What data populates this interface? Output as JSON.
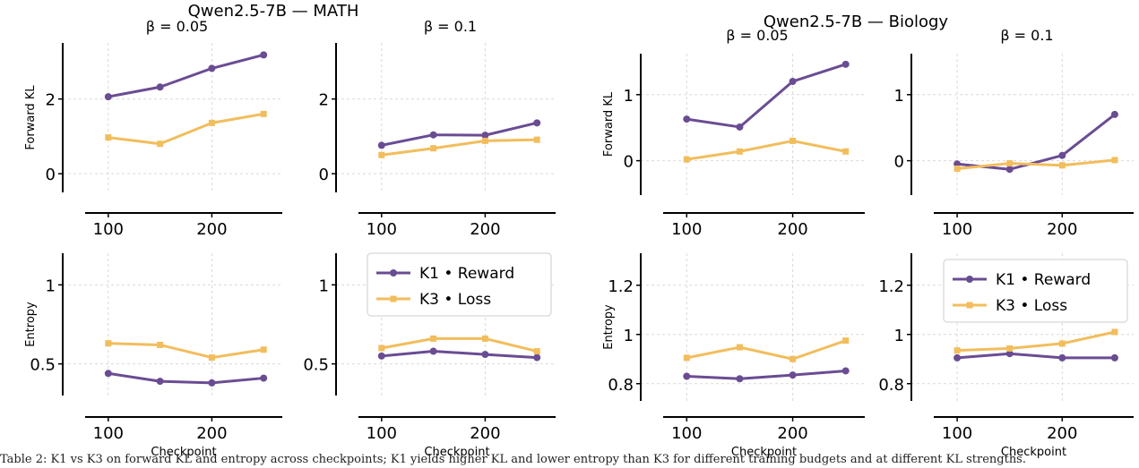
{
  "colors": {
    "k1": "#6a4c93",
    "k3": "#f2bd5c",
    "grid": "#d9d9d9",
    "axis": "#000000"
  },
  "figure": {
    "caption_fragment": "Table 2: K1 vs K3 on forward KL and entropy across checkpoints; K1 yields higher KL and lower entropy than K3 for different training budgets and at different KL strengths."
  },
  "chart_data": [
    {
      "type": "line",
      "group": "Qwen2.5-7B — MATH",
      "title": "β = 0.05",
      "ylabel": "Forward KL",
      "xlabel": "",
      "x": [
        100,
        150,
        200,
        250
      ],
      "xticks": [
        100,
        200
      ],
      "yticks": [
        0,
        2
      ],
      "ylim": [
        -0.5,
        3.5
      ],
      "series": [
        {
          "name": "K1 • Reward",
          "marker": "circle",
          "values": [
            2.06,
            2.32,
            2.82,
            3.18
          ]
        },
        {
          "name": "K3 • Loss",
          "marker": "square",
          "values": [
            0.97,
            0.8,
            1.36,
            1.6
          ]
        }
      ]
    },
    {
      "type": "line",
      "group": "Qwen2.5-7B — MATH",
      "title": "β = 0.1",
      "ylabel": "",
      "xlabel": "",
      "x": [
        100,
        150,
        200,
        250
      ],
      "xticks": [
        100,
        200
      ],
      "yticks": [
        0,
        2
      ],
      "ylim": [
        -0.5,
        3.5
      ],
      "series": [
        {
          "name": "K1 • Reward",
          "marker": "circle",
          "values": [
            0.76,
            1.04,
            1.03,
            1.36
          ]
        },
        {
          "name": "K3 • Loss",
          "marker": "square",
          "values": [
            0.5,
            0.68,
            0.88,
            0.91
          ]
        }
      ]
    },
    {
      "type": "line",
      "group": "Qwen2.5-7B — Biology",
      "title": "β = 0.05",
      "ylabel": "Forward KL",
      "xlabel": "",
      "x": [
        100,
        150,
        200,
        250
      ],
      "xticks": [
        100,
        200
      ],
      "yticks": [
        0,
        1
      ],
      "ylim": [
        -0.52,
        1.62
      ],
      "series": [
        {
          "name": "K1 • Reward",
          "marker": "circle",
          "values": [
            0.63,
            0.51,
            1.2,
            1.46
          ]
        },
        {
          "name": "K3 • Loss",
          "marker": "square",
          "values": [
            0.02,
            0.14,
            0.3,
            0.14
          ]
        }
      ]
    },
    {
      "type": "line",
      "group": "Qwen2.5-7B — Biology",
      "title": "β = 0.1",
      "ylabel": "",
      "xlabel": "",
      "x": [
        100,
        150,
        200,
        250
      ],
      "xticks": [
        100,
        200
      ],
      "yticks": [
        0,
        1
      ],
      "ylim": [
        -0.52,
        1.62
      ],
      "series": [
        {
          "name": "K1 • Reward",
          "marker": "circle",
          "values": [
            -0.05,
            -0.13,
            0.08,
            0.7
          ]
        },
        {
          "name": "K3 • Loss",
          "marker": "square",
          "values": [
            -0.12,
            -0.04,
            -0.07,
            0.01
          ]
        }
      ]
    },
    {
      "type": "line",
      "group": "Qwen2.5-7B — MATH",
      "title": "",
      "ylabel": "Entropy",
      "xlabel": "Checkpoint",
      "x": [
        100,
        150,
        200,
        250
      ],
      "xticks": [
        100,
        200
      ],
      "yticks": [
        0.5,
        1.0
      ],
      "ylim": [
        0.3,
        1.2
      ],
      "series": [
        {
          "name": "K1 • Reward",
          "marker": "circle",
          "values": [
            0.44,
            0.39,
            0.38,
            0.41
          ]
        },
        {
          "name": "K3 • Loss",
          "marker": "square",
          "values": [
            0.63,
            0.62,
            0.54,
            0.59
          ]
        }
      ]
    },
    {
      "type": "line",
      "group": "Qwen2.5-7B — MATH",
      "title": "",
      "ylabel": "",
      "xlabel": "Checkpoint",
      "x": [
        100,
        150,
        200,
        250
      ],
      "xticks": [
        100,
        200
      ],
      "yticks": [
        0.5,
        1.0
      ],
      "ylim": [
        0.3,
        1.2
      ],
      "legend": "upper right",
      "series": [
        {
          "name": "K1 • Reward",
          "marker": "circle",
          "values": [
            0.55,
            0.58,
            0.56,
            0.54
          ]
        },
        {
          "name": "K3 • Loss",
          "marker": "square",
          "values": [
            0.6,
            0.66,
            0.66,
            0.58
          ]
        }
      ]
    },
    {
      "type": "line",
      "group": "Qwen2.5-7B — Biology",
      "title": "",
      "ylabel": "Entropy",
      "xlabel": "Checkpoint",
      "x": [
        100,
        150,
        200,
        250
      ],
      "xticks": [
        100,
        200
      ],
      "yticks": [
        0.8,
        1.0,
        1.2
      ],
      "ylim": [
        0.73,
        1.33
      ],
      "series": [
        {
          "name": "K1 • Reward",
          "marker": "circle",
          "values": [
            0.83,
            0.82,
            0.835,
            0.852
          ]
        },
        {
          "name": "K3 • Loss",
          "marker": "square",
          "values": [
            0.905,
            0.948,
            0.9,
            0.975
          ]
        }
      ]
    },
    {
      "type": "line",
      "group": "Qwen2.5-7B — Biology",
      "title": "",
      "ylabel": "",
      "xlabel": "Checkpoint",
      "x": [
        100,
        150,
        200,
        250
      ],
      "xticks": [
        100,
        200
      ],
      "yticks": [
        0.8,
        1.0,
        1.2
      ],
      "ylim": [
        0.73,
        1.33
      ],
      "legend": "upper right",
      "series": [
        {
          "name": "K1 • Reward",
          "marker": "circle",
          "values": [
            0.905,
            0.922,
            0.905,
            0.905
          ]
        },
        {
          "name": "K3 • Loss",
          "marker": "square",
          "values": [
            0.935,
            0.943,
            0.963,
            1.01
          ]
        }
      ]
    }
  ]
}
